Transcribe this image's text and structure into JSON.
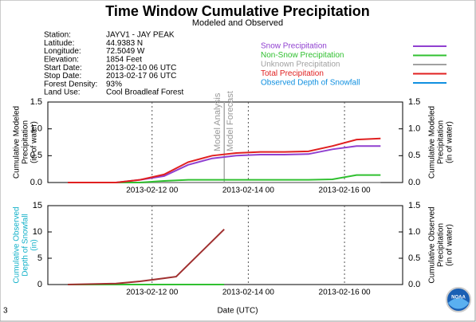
{
  "header": {
    "title": "Time Window Cumulative Precipitation",
    "subtitle": "Modeled and Observed"
  },
  "station_info": [
    {
      "label": "Station:",
      "value": "JAYV1 - JAY PEAK"
    },
    {
      "label": "Latitude:",
      "value": "44.9383 N"
    },
    {
      "label": "Longitude:",
      "value": "72.5049 W"
    },
    {
      "label": "Elevation:",
      "value": "1854 Feet"
    },
    {
      "label": "Start Date:",
      "value": "2013-02-10 06 UTC"
    },
    {
      "label": "Stop Date:",
      "value": "2013-02-17 06 UTC"
    },
    {
      "label": "Forest Density:",
      "value": "93%"
    },
    {
      "label": "Land Use:",
      "value": "Cool Broadleaf Forest"
    }
  ],
  "legend": [
    {
      "name": "Snow Precipitation",
      "color": "#9040d0"
    },
    {
      "name": "Non-Snow Precipitation",
      "color": "#30c030"
    },
    {
      "name": "Unknown Precipitation",
      "color": "#a0a0a0"
    },
    {
      "name": "Total Precipitation",
      "color": "#e02020"
    },
    {
      "name": "Observed Depth of Snowfall",
      "color": "#1090e0"
    }
  ],
  "footer": {
    "page": "3",
    "xlabel": "Date (UTC)"
  },
  "chart_data": [
    {
      "type": "line",
      "ylabel": [
        "Cumulative Modeled",
        "Precipitation",
        "(in of water)"
      ],
      "y2label": [
        "Cumulative Modeled",
        "Precipitation",
        "(in of water)"
      ],
      "xlim": [
        "2013-02-09 20",
        "2013-02-17 05"
      ],
      "xticks": [
        "2013-02-12 00",
        "2013-02-14 00",
        "2013-02-16 00"
      ],
      "ylim": [
        0,
        1.5
      ],
      "yticks": [
        {
          "value": 0,
          "label": "0.0"
        },
        {
          "value": 0.5,
          "label": "0.5"
        },
        {
          "value": 1,
          "label": "1.0"
        },
        {
          "value": 1.5,
          "label": "1.5"
        }
      ],
      "y2lim": [
        0,
        1.5
      ],
      "y2ticks": [
        {
          "value": 0,
          "label": "0.0"
        },
        {
          "value": 0.5,
          "label": "0.5"
        },
        {
          "value": 1,
          "label": "1.0"
        },
        {
          "value": 1.5,
          "label": "1.5"
        }
      ],
      "annotations": [
        {
          "text": "Model Analysis",
          "x": "2013-02-13 12"
        },
        {
          "text": "Model Forecast",
          "x": "2013-02-13 12"
        }
      ],
      "x": [
        "2013-02-10 06",
        "2013-02-10 18",
        "2013-02-11 06",
        "2013-02-11 18",
        "2013-02-12 06",
        "2013-02-12 18",
        "2013-02-13 06",
        "2013-02-13 18",
        "2013-02-14 06",
        "2013-02-14 18",
        "2013-02-15 06",
        "2013-02-15 18",
        "2013-02-16 06",
        "2013-02-16 18"
      ],
      "series": [
        {
          "color": "#a0a0a0",
          "values": [
            0,
            0,
            0,
            0,
            0,
            0,
            0,
            0,
            0,
            0,
            0,
            0,
            0,
            0
          ]
        },
        {
          "color": "#30c030",
          "values": [
            0,
            0,
            0,
            0,
            0.03,
            0.05,
            0.05,
            0.05,
            0.05,
            0.05,
            0.05,
            0.06,
            0.14,
            0.14
          ]
        },
        {
          "color": "#9040d0",
          "values": [
            0,
            0,
            0,
            0.05,
            0.12,
            0.33,
            0.45,
            0.5,
            0.52,
            0.52,
            0.53,
            0.62,
            0.68,
            0.68
          ]
        },
        {
          "color": "#e02020",
          "values": [
            0,
            0,
            0,
            0.05,
            0.15,
            0.38,
            0.5,
            0.55,
            0.57,
            0.57,
            0.58,
            0.68,
            0.8,
            0.82
          ]
        }
      ]
    },
    {
      "type": "line",
      "ylabel": [
        "Cumulative Observed",
        "Depth of Snowfall",
        "(in)"
      ],
      "ylabel_color": "#10b0c8",
      "y2label": [
        "Cumulative Observed",
        "Precipitation",
        "(in of water)"
      ],
      "xlim": [
        "2013-02-09 20",
        "2013-02-17 05"
      ],
      "xticks": [
        "2013-02-12 00",
        "2013-02-14 00",
        "2013-02-16 00"
      ],
      "ylim": [
        0,
        15
      ],
      "yticks": [
        0,
        5,
        10,
        15
      ],
      "y2lim": [
        0,
        1.5
      ],
      "y2ticks": [
        {
          "value": 0,
          "label": "0.0"
        },
        {
          "value": 0.5,
          "label": "0.5"
        },
        {
          "value": 1,
          "label": "1.0"
        },
        {
          "value": 1.5,
          "label": "1.5"
        }
      ],
      "x": [
        "2013-02-10 06",
        "2013-02-11 06",
        "2013-02-11 18",
        "2013-02-12 06",
        "2013-02-12 12",
        "2013-02-13 12"
      ],
      "series": [
        {
          "color": "#30c030",
          "axis": "y2",
          "values": [
            0,
            0,
            0,
            0,
            0,
            0
          ]
        },
        {
          "color": "#a03030",
          "axis": "y2",
          "values": [
            0,
            0.02,
            0.06,
            0.12,
            0.15,
            1.05
          ]
        }
      ]
    }
  ]
}
